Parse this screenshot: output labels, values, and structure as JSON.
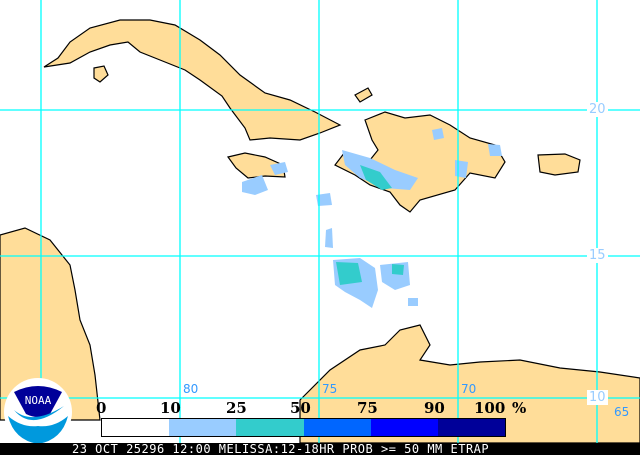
{
  "map": {
    "latitude_labels": [
      "20",
      "15",
      "10"
    ],
    "longitude_labels": [
      "80",
      "75",
      "70",
      "65"
    ],
    "land_color": "#ffdd99",
    "grid_color": "#00ffff"
  },
  "legend": {
    "ticks": [
      "0",
      "10",
      "25",
      "50",
      "75",
      "90",
      "100"
    ],
    "unit": "%",
    "colors": [
      "#ffffff",
      "#99ccff",
      "#33cccc",
      "#0066ff",
      "#0000ff",
      "#000099"
    ]
  },
  "logo": {
    "text": "NOAA"
  },
  "footer": {
    "text": "23 OCT 25296 12:00 MELISSA:12-18HR PROB >= 50 MM ETRAP"
  }
}
